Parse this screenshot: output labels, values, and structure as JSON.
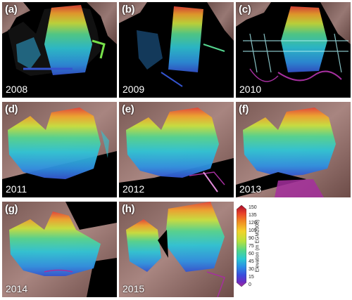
{
  "panels": [
    {
      "label": "(a)",
      "year": "2008",
      "coverage": "swath-partial"
    },
    {
      "label": "(b)",
      "year": "2009",
      "coverage": "swath-partial"
    },
    {
      "label": "(c)",
      "year": "2010",
      "coverage": "swath-grid"
    },
    {
      "label": "(d)",
      "year": "2011",
      "coverage": "full"
    },
    {
      "label": "(e)",
      "year": "2012",
      "coverage": "full"
    },
    {
      "label": "(f)",
      "year": "2013",
      "coverage": "full"
    },
    {
      "label": "(g)",
      "year": "2014",
      "coverage": "full-masked"
    },
    {
      "label": "(h)",
      "year": "2015",
      "coverage": "full"
    }
  ],
  "colorbar": {
    "title": "Elevation (m EGM2008)",
    "ticks": [
      "150",
      "135",
      "120",
      "105",
      "90",
      "75",
      "60",
      "45",
      "30",
      "15",
      "0"
    ],
    "colors": [
      "#a80b2a",
      "#e8412a",
      "#f08a22",
      "#f3d22a",
      "#b8e23c",
      "#4fd68a",
      "#28c8d2",
      "#2a8ce6",
      "#3b4bdc",
      "#6a2cc2",
      "#a52f9e"
    ]
  }
}
